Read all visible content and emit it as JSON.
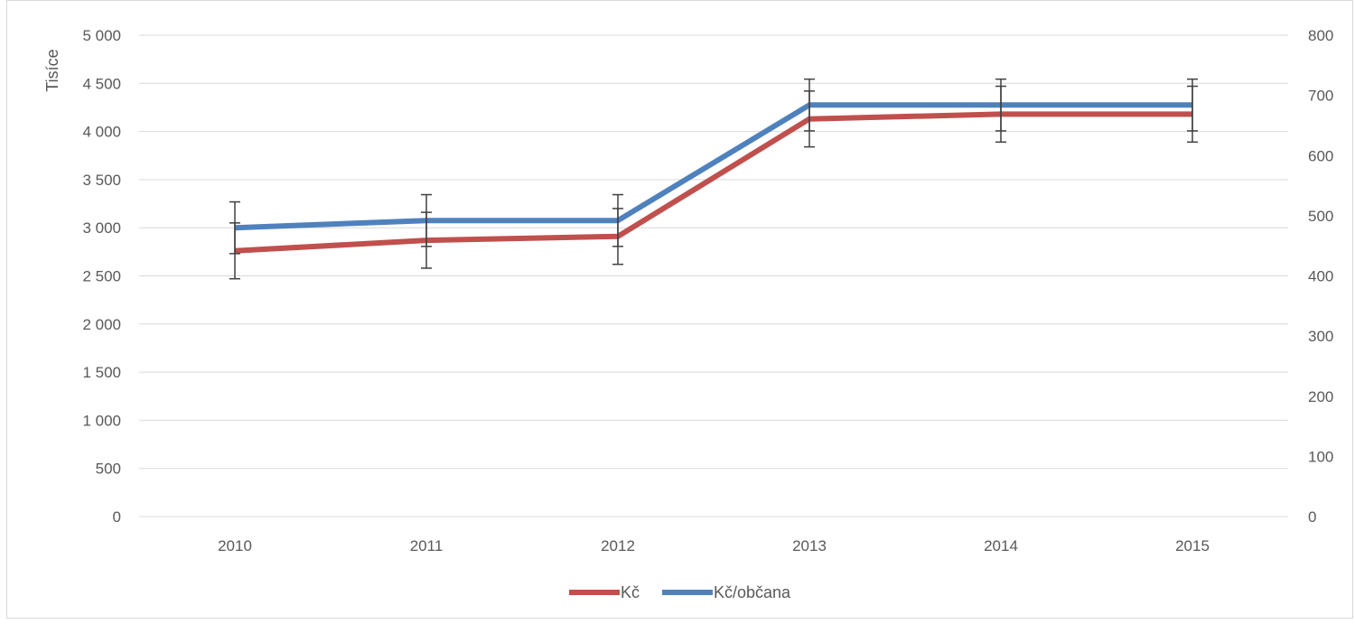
{
  "chart_data": {
    "type": "line",
    "title": "",
    "categories": [
      "2010",
      "2011",
      "2012",
      "2013",
      "2014",
      "2015"
    ],
    "y_left": {
      "label": "Tisíce",
      "range": [
        0,
        5000
      ],
      "ticks": [
        0,
        500,
        1000,
        1500,
        2000,
        2500,
        3000,
        3500,
        4000,
        4500,
        5000
      ],
      "tick_labels": [
        "0",
        "500",
        "1 000",
        "1 500",
        "2 000",
        "2 500",
        "3 000",
        "3 500",
        "4 000",
        "4 500",
        "5 000"
      ]
    },
    "y_right": {
      "range": [
        0,
        800
      ],
      "ticks": [
        0,
        100,
        200,
        300,
        400,
        500,
        600,
        700,
        800
      ],
      "tick_labels": [
        "0",
        "100",
        "200",
        "300",
        "400",
        "500",
        "600",
        "700",
        "800"
      ]
    },
    "series": [
      {
        "name": "Kč",
        "axis": "left",
        "color": "#c0504d",
        "values": [
          2760,
          2870,
          2910,
          4130,
          4180,
          4180
        ],
        "error_bar": 290
      },
      {
        "name": "Kč/občana",
        "axis": "right",
        "color": "#4f81bd",
        "values": [
          480,
          492,
          492,
          684,
          684,
          684
        ],
        "error_bar": 43
      }
    ],
    "grid": true,
    "legend_position": "bottom"
  }
}
